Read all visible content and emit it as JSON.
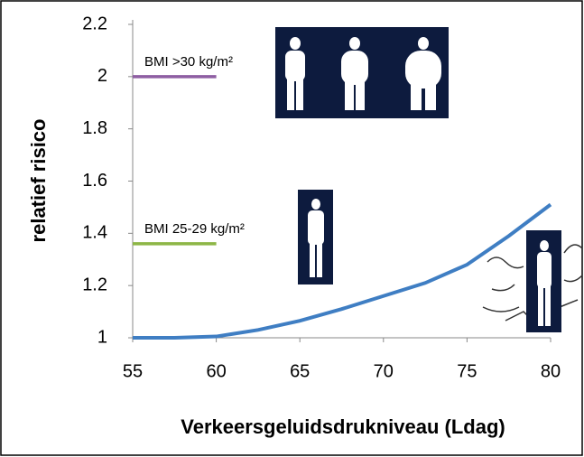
{
  "chart_data": {
    "type": "line",
    "xlabel": "Verkeersgeluidsdrukniveau  (Ldag)",
    "ylabel": "relatief risico",
    "xlim": [
      55,
      80
    ],
    "xticks": [
      55,
      60,
      65,
      70,
      75,
      80
    ],
    "ylim": [
      1,
      2.2
    ],
    "yticks": [
      1,
      1.2,
      1.4,
      1.6,
      1.8,
      2,
      2.2
    ],
    "series": [
      {
        "color": "#3f7ec3",
        "x": [
          55,
          57.5,
          60,
          62.5,
          65,
          67.5,
          70,
          72.5,
          75,
          77.5,
          80
        ],
        "values": [
          1.0,
          1.0,
          1.005,
          1.03,
          1.065,
          1.11,
          1.16,
          1.21,
          1.28,
          1.39,
          1.51
        ]
      },
      {
        "name": "BMI >30 kg/m²",
        "color": "#8e5ea2",
        "x": [
          55,
          60
        ],
        "values": [
          2,
          2
        ]
      },
      {
        "name": "BMI 25-29 kg/m²",
        "color": "#8db646",
        "x": [
          55,
          60
        ],
        "values": [
          1.36,
          1.36
        ]
      }
    ]
  }
}
